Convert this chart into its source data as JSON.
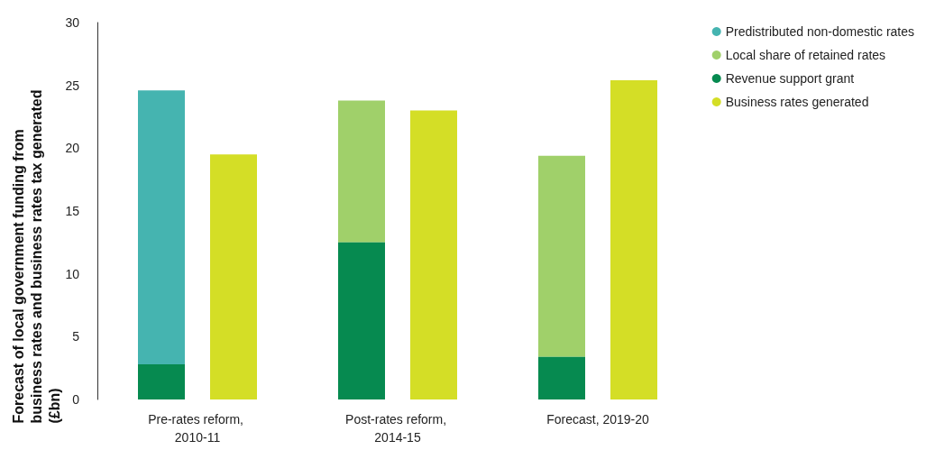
{
  "chart_data": {
    "type": "bar",
    "ylabel": "Forecast of local government funding from business rates and business rates tax generated (£bn)",
    "categories": [
      "Pre-rates reform, 2010-11",
      "Post-rates reform, 2014-15",
      "Forecast, 2019-20"
    ],
    "series": [
      {
        "name": "Predistributed non-domestic rates",
        "color": "#45b4b0",
        "values": [
          21.8,
          null,
          null
        ],
        "base": [
          2.8,
          null,
          null
        ]
      },
      {
        "name": "Local share of retained rates",
        "color": "#a0d06a",
        "values": [
          null,
          11.3,
          16.0
        ],
        "base": [
          null,
          12.5,
          3.4
        ]
      },
      {
        "name": "Revenue support grant",
        "color": "#068a50",
        "values": [
          2.8,
          12.5,
          3.4
        ],
        "base": [
          0,
          0,
          0
        ]
      },
      {
        "name": "Business rates generated",
        "color": "#d4de26",
        "values": [
          19.5,
          23.0,
          25.4
        ],
        "base": [
          0,
          0,
          0
        ]
      }
    ],
    "ylim": [
      0,
      30
    ],
    "yticks": [
      0,
      5,
      10,
      15,
      20,
      25,
      30
    ],
    "grid": false,
    "legend": "top right"
  }
}
